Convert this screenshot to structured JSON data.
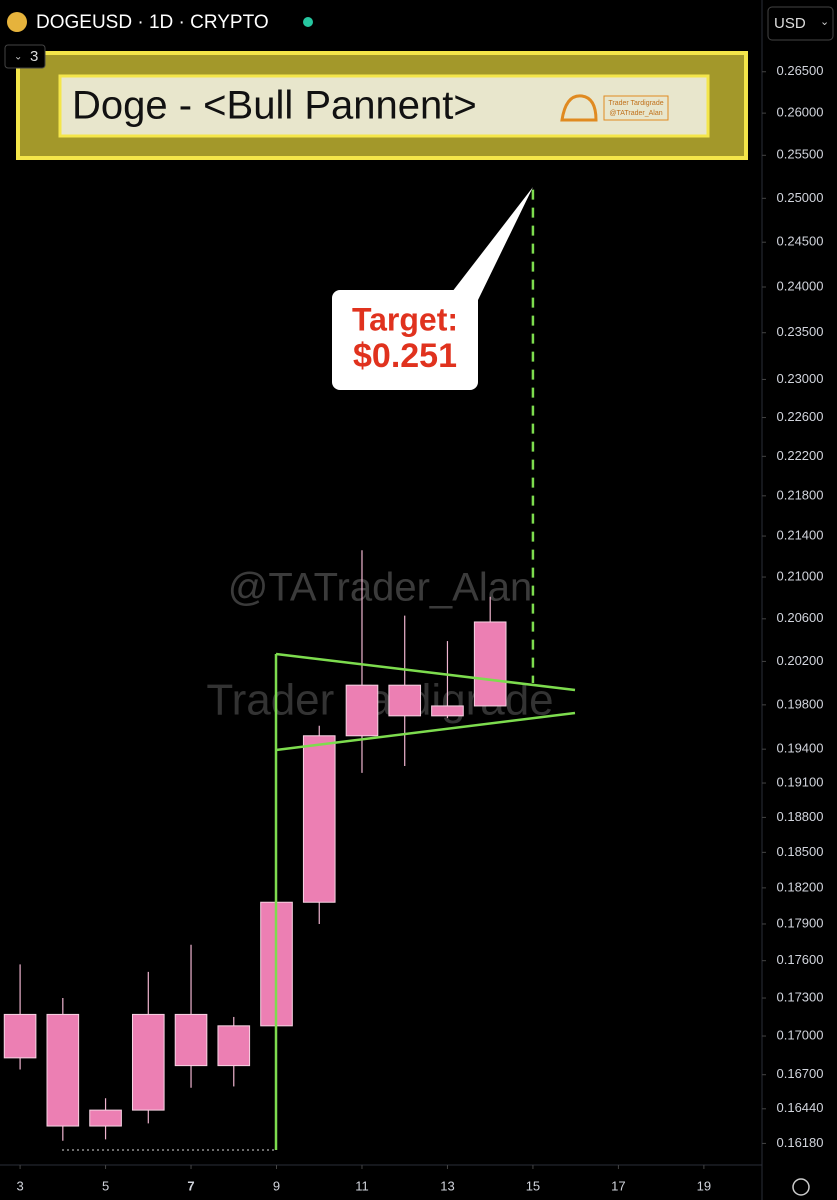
{
  "header": {
    "symbol": "DOGEUSD · 1D · CRYPTO",
    "indicator_count": 3,
    "currency": "USD"
  },
  "chart_data": {
    "type": "candlestick",
    "title": "Doge - <Bull Pannent>",
    "logo": [
      "Trader Tardigrade",
      "@TATrader_Alan"
    ],
    "watermarks": [
      "@TATrader_Alan",
      "Trader Tardigrade"
    ],
    "target": {
      "label": "Target:",
      "value": 0.251,
      "value_label": "$0.251"
    },
    "x": [
      3,
      4,
      5,
      6,
      7,
      8,
      9,
      10,
      11,
      12,
      13,
      14
    ],
    "open": [
      0.1683,
      0.1717,
      0.1631,
      0.1643,
      0.1677,
      0.1677,
      0.1708,
      0.1808,
      0.1952,
      0.1998,
      0.197,
      0.1979
    ],
    "high": [
      0.1757,
      0.173,
      0.1652,
      0.1751,
      0.1773,
      0.1715,
      0.1808,
      0.1961,
      0.2126,
      0.2063,
      0.2039,
      0.2081
    ],
    "low": [
      0.1674,
      0.162,
      0.1621,
      0.1633,
      0.166,
      0.1661,
      0.1708,
      0.179,
      0.1919,
      0.1925,
      0.1968,
      0.1979
    ],
    "close": [
      0.1717,
      0.1631,
      0.1643,
      0.1717,
      0.1717,
      0.1708,
      0.1808,
      0.1952,
      0.1998,
      0.197,
      0.1979,
      0.2057
    ],
    "color": "#ec7fb3",
    "log_scale": true,
    "xlim": [
      2.53,
      20.36
    ],
    "xticks": [
      3,
      5,
      7,
      9,
      11,
      13,
      15,
      17,
      19
    ],
    "ylim": [
      0.1602,
      0.2739
    ],
    "yticks": [
      {
        "value": 0.265,
        "label": "0.26500"
      },
      {
        "value": 0.26,
        "label": "0.26000"
      },
      {
        "value": 0.255,
        "label": "0.25500"
      },
      {
        "value": 0.25,
        "label": "0.25000"
      },
      {
        "value": 0.245,
        "label": "0.24500"
      },
      {
        "value": 0.24,
        "label": "0.24000"
      },
      {
        "value": 0.235,
        "label": "0.23500"
      },
      {
        "value": 0.23,
        "label": "0.23000"
      },
      {
        "value": 0.226,
        "label": "0.22600"
      },
      {
        "value": 0.222,
        "label": "0.22200"
      },
      {
        "value": 0.218,
        "label": "0.21800"
      },
      {
        "value": 0.214,
        "label": "0.21400"
      },
      {
        "value": 0.21,
        "label": "0.21000"
      },
      {
        "value": 0.206,
        "label": "0.20600"
      },
      {
        "value": 0.202,
        "label": "0.20200"
      },
      {
        "value": 0.198,
        "label": "0.19800"
      },
      {
        "value": 0.194,
        "label": "0.19400"
      },
      {
        "value": 0.191,
        "label": "0.19100"
      },
      {
        "value": 0.188,
        "label": "0.18800"
      },
      {
        "value": 0.185,
        "label": "0.18500"
      },
      {
        "value": 0.182,
        "label": "0.18200"
      },
      {
        "value": 0.179,
        "label": "0.17900"
      },
      {
        "value": 0.176,
        "label": "0.17600"
      },
      {
        "value": 0.173,
        "label": "0.17300"
      },
      {
        "value": 0.17,
        "label": "0.17000"
      },
      {
        "value": 0.167,
        "label": "0.16700"
      },
      {
        "value": 0.1644,
        "label": "0.16440"
      },
      {
        "value": 0.1618,
        "label": "0.16180"
      }
    ]
  }
}
